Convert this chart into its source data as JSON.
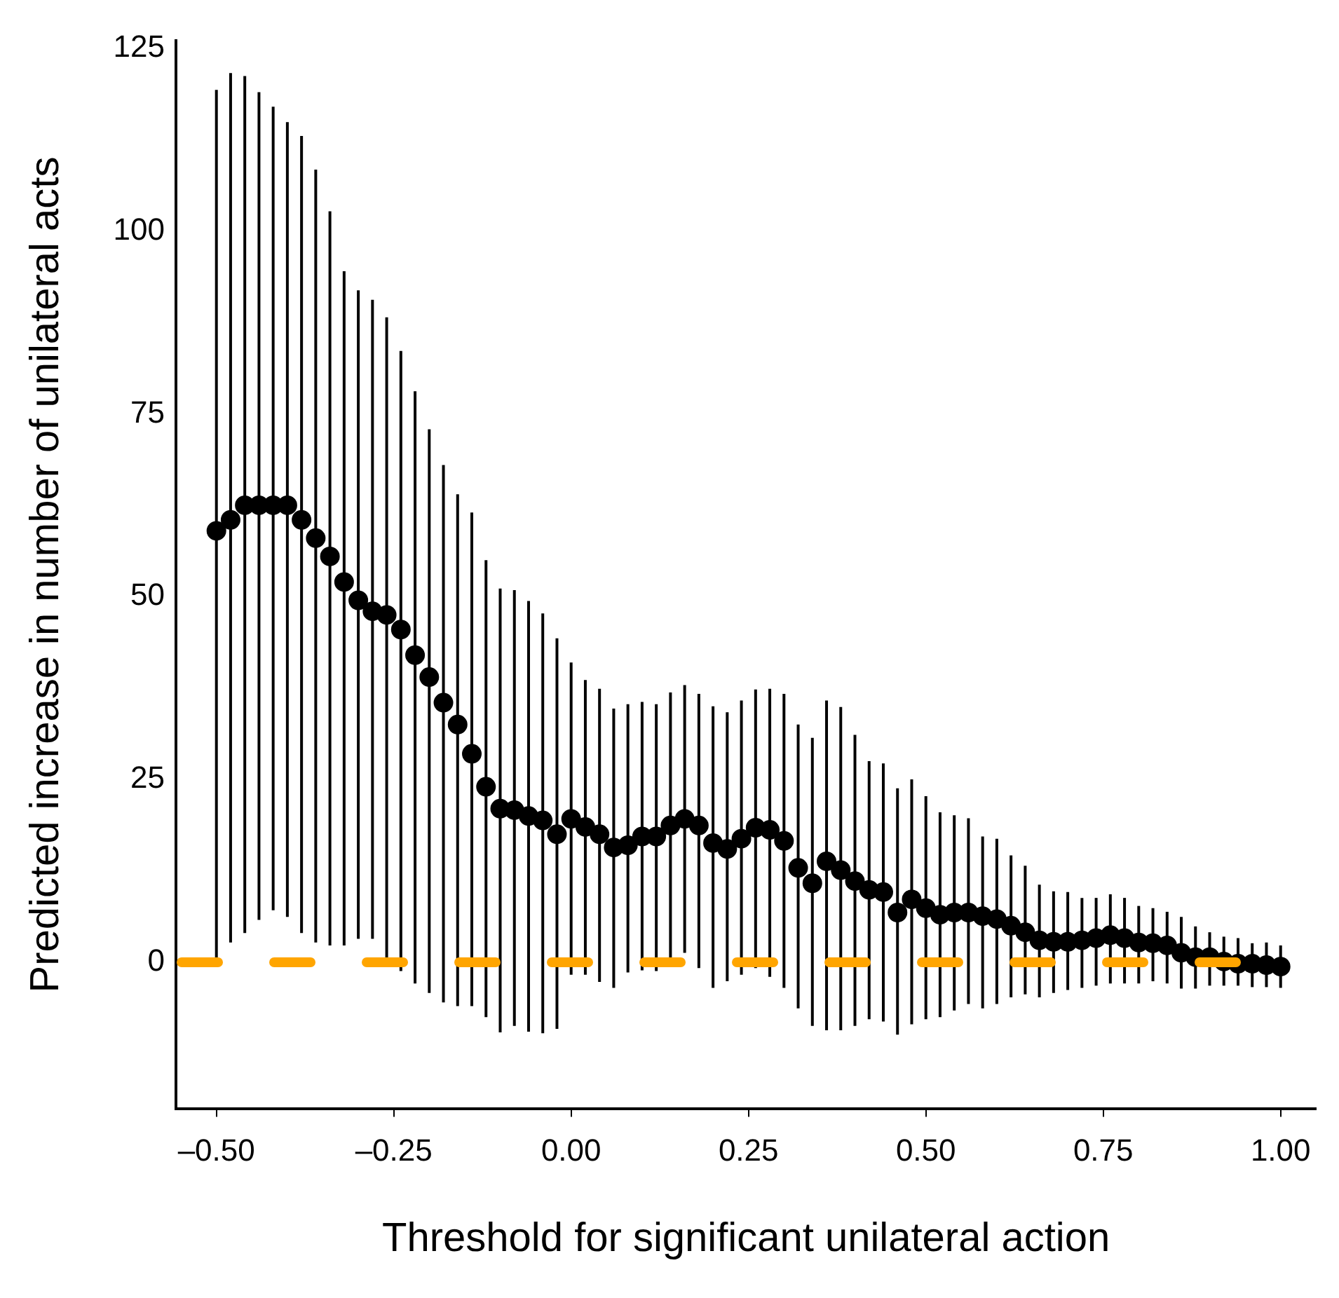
{
  "chart_data": {
    "type": "scatter",
    "xlabel": "Threshold for significant unilateral action",
    "ylabel": "Predicted increase in number of unilateral acts",
    "x": [
      -0.5,
      -0.48,
      -0.46,
      -0.44,
      -0.42,
      -0.4,
      -0.38,
      -0.36,
      -0.34,
      -0.32,
      -0.3,
      -0.28,
      -0.26,
      -0.24,
      -0.22,
      -0.2,
      -0.18,
      -0.16,
      -0.14,
      -0.12,
      -0.1,
      -0.08,
      -0.06,
      -0.04,
      -0.02,
      0,
      0.02,
      0.04,
      0.06,
      0.08,
      0.1,
      0.12,
      0.14,
      0.16,
      0.18,
      0.2,
      0.22,
      0.24,
      0.26,
      0.28,
      0.3,
      0.32,
      0.34,
      0.36,
      0.38,
      0.4,
      0.42,
      0.44,
      0.46,
      0.48,
      0.5,
      0.52,
      0.54,
      0.56,
      0.58,
      0.6,
      0.62,
      0.64,
      0.66,
      0.68,
      0.7,
      0.72,
      0.74,
      0.76,
      0.78,
      0.8,
      0.82,
      0.84,
      0.86,
      0.88,
      0.9,
      0.92,
      0.94,
      0.96,
      0.98,
      1
    ],
    "series": [
      {
        "color": "#000000",
        "values": [
          59,
          60.5,
          62.5,
          62.5,
          62.5,
          62.5,
          60.5,
          58,
          55.5,
          52,
          49.5,
          48,
          47.5,
          45.5,
          42,
          39,
          35.5,
          32.5,
          28.5,
          24,
          21,
          20.8,
          20,
          19.4,
          17.5,
          19.6,
          18.5,
          17.5,
          15.7,
          16,
          17.2,
          17.2,
          18.7,
          19.6,
          18.7,
          16.3,
          15.5,
          16.9,
          18.4,
          18.1,
          16.6,
          12.9,
          10.8,
          13.8,
          12.6,
          11.1,
          9.9,
          9.6,
          6.8,
          8.6,
          7.4,
          6.5,
          6.8,
          6.8,
          6.3,
          5.9,
          5,
          4.1,
          3,
          2.8,
          2.8,
          3,
          3.3,
          3.7,
          3.3,
          2.7,
          2.6,
          2.3,
          1.3,
          0.7,
          0.7,
          0.1,
          -0.2,
          -0.2,
          -0.4,
          -0.6
        ],
        "errors": [
          [
            0,
            119.3
          ],
          [
            2.7,
            121.6
          ],
          [
            4,
            121.2
          ],
          [
            5.8,
            119
          ],
          [
            7.1,
            117
          ],
          [
            6.2,
            114.9
          ],
          [
            4,
            113
          ],
          [
            2.7,
            108.4
          ],
          [
            2.3,
            102.7
          ],
          [
            2.3,
            94.5
          ],
          [
            3.2,
            91.9
          ],
          [
            3.2,
            90.6
          ],
          [
            0.5,
            88.2
          ],
          [
            -1.2,
            83.6
          ],
          [
            -2.9,
            78.1
          ],
          [
            -4.2,
            72.9
          ],
          [
            -5.5,
            68
          ],
          [
            -6,
            64
          ],
          [
            -6,
            61.5
          ],
          [
            -7.5,
            55
          ],
          [
            -9.6,
            51.1
          ],
          [
            -8.7,
            50.9
          ],
          [
            -9.5,
            49.4
          ],
          [
            -9.7,
            47.7
          ],
          [
            -9.1,
            44.3
          ],
          [
            -1.7,
            41
          ],
          [
            -1.7,
            38.6
          ],
          [
            -2.7,
            37.4
          ],
          [
            -3.5,
            34.7
          ],
          [
            -1.4,
            35.3
          ],
          [
            -1.1,
            35.6
          ],
          [
            -1.2,
            35.3
          ],
          [
            0.6,
            36.9
          ],
          [
            1.3,
            37.9
          ],
          [
            -0.8,
            36.7
          ],
          [
            -3.5,
            35
          ],
          [
            -2.6,
            34.2
          ],
          [
            -1.7,
            35.8
          ],
          [
            -0.8,
            37.3
          ],
          [
            -2,
            37.4
          ],
          [
            -3.5,
            36.7
          ],
          [
            -6.3,
            32.5
          ],
          [
            -8.7,
            30.7
          ],
          [
            -9.3,
            35.8
          ],
          [
            -9.3,
            34.9
          ],
          [
            -8.7,
            31.1
          ],
          [
            -7.8,
            27.5
          ],
          [
            -8.1,
            27.2
          ],
          [
            -9.9,
            23.8
          ],
          [
            -8.5,
            25
          ],
          [
            -7.8,
            22.7
          ],
          [
            -7.5,
            20.5
          ],
          [
            -6.6,
            20.1
          ],
          [
            -5.7,
            19.7
          ],
          [
            -6.3,
            17.2
          ],
          [
            -5.7,
            16.9
          ],
          [
            -4.8,
            14.6
          ],
          [
            -4.4,
            13.2
          ],
          [
            -4.8,
            10.6
          ],
          [
            -4.2,
            9.7
          ],
          [
            -3.8,
            9.6
          ],
          [
            -3.5,
            8.8
          ],
          [
            -3.2,
            8.8
          ],
          [
            -2.9,
            9.3
          ],
          [
            -2.9,
            8.8
          ],
          [
            -2.9,
            7.7
          ],
          [
            -2.6,
            7.4
          ],
          [
            -2.9,
            6.9
          ],
          [
            -3.6,
            6.2
          ],
          [
            -3.6,
            4.9
          ],
          [
            -3.2,
            4.1
          ],
          [
            -3.2,
            3.5
          ],
          [
            -3.2,
            3.3
          ],
          [
            -3.4,
            2.6
          ],
          [
            -3.4,
            2.7
          ],
          [
            -3.5,
            2.3
          ]
        ]
      }
    ],
    "xlim": [
      -0.557,
      1.05
    ],
    "xticks": [
      {
        "value": -0.5,
        "label": "–0.50"
      },
      {
        "value": -0.25,
        "label": "–0.25"
      },
      {
        "value": 0,
        "label": "0.00"
      },
      {
        "value": 0.25,
        "label": "0.25"
      },
      {
        "value": 0.5,
        "label": "0.50"
      },
      {
        "value": 0.75,
        "label": "0.75"
      },
      {
        "value": 1,
        "label": "1.00"
      }
    ],
    "ylim": [
      -20,
      126
    ],
    "yticks": [
      0,
      25,
      50,
      75,
      100,
      125
    ],
    "ref_lines": [
      {
        "axis": "y",
        "value": 0,
        "color": "#ffa500",
        "line_style": "dashed"
      }
    ],
    "marker": "circle",
    "grid": false,
    "legend": false
  }
}
